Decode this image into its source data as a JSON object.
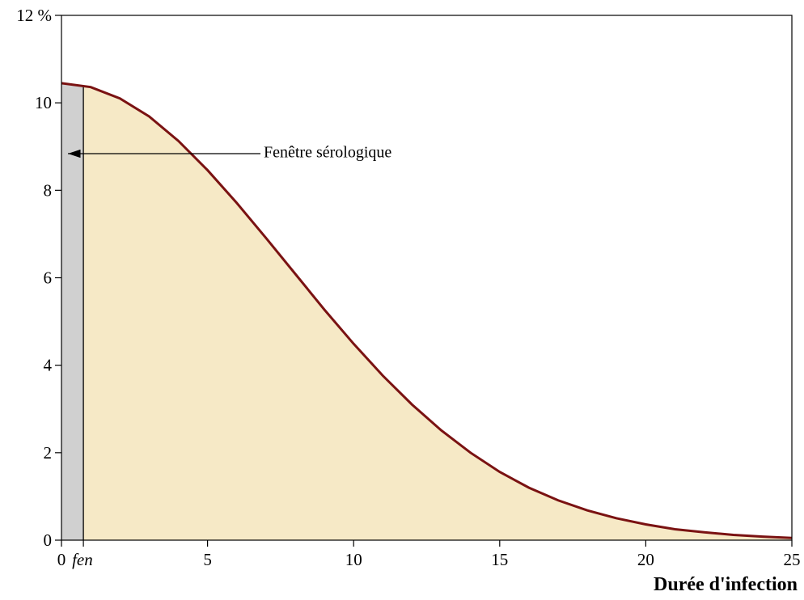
{
  "chart_data": {
    "type": "area",
    "x": [
      0,
      1,
      2,
      3,
      4,
      5,
      6,
      7,
      8,
      9,
      10,
      11,
      12,
      13,
      14,
      15,
      16,
      17,
      18,
      19,
      20,
      21,
      22,
      23,
      24,
      25
    ],
    "values": [
      10.45,
      10.36,
      10.1,
      9.69,
      9.13,
      8.46,
      7.71,
      6.91,
      6.09,
      5.27,
      4.49,
      3.76,
      3.1,
      2.51,
      2.0,
      1.56,
      1.2,
      0.91,
      0.68,
      0.5,
      0.36,
      0.25,
      0.18,
      0.12,
      0.08,
      0.05
    ],
    "color": "#7a1212",
    "fill": "#f6e9c6",
    "window_color": "#d0d0d0",
    "xlim": [
      0,
      25
    ],
    "ylim": [
      0,
      12
    ],
    "xticks": [
      0,
      {
        "value": 0.75,
        "label": "fen"
      },
      5,
      10,
      15,
      20,
      25
    ],
    "yticks": [
      0,
      2,
      4,
      6,
      8,
      10,
      {
        "value": 12,
        "label": "12 %"
      }
    ],
    "xlabel": "Durée d'infection",
    "annotation": "Fenêtre sérologique"
  }
}
